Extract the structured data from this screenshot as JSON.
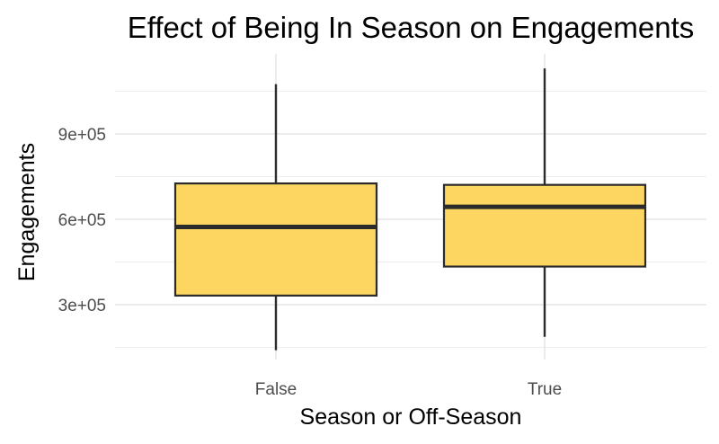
{
  "chart_data": {
    "type": "boxplot",
    "title": "Effect of Being In Season on Engagements",
    "xlabel": "Season or Off-Season",
    "ylabel": "Engagements",
    "categories": [
      "False",
      "True"
    ],
    "boxes": [
      {
        "category": "False",
        "min": 140000,
        "q1": 332000,
        "median": 573000,
        "q3": 726000,
        "max": 1075000
      },
      {
        "category": "True",
        "min": 187000,
        "q1": 434000,
        "median": 644000,
        "q3": 721000,
        "max": 1130000
      }
    ],
    "y_ticks": [
      {
        "value": 300000,
        "label": "3e+05"
      },
      {
        "value": 600000,
        "label": "6e+05"
      },
      {
        "value": 900000,
        "label": "9e+05"
      }
    ],
    "y_minor": [
      150000,
      450000,
      750000,
      1050000
    ],
    "ylim": [
      100000,
      1160000
    ],
    "fill_color": "#FDD662",
    "line_color": "#2B2B2B",
    "grid": true,
    "legend": "none"
  }
}
